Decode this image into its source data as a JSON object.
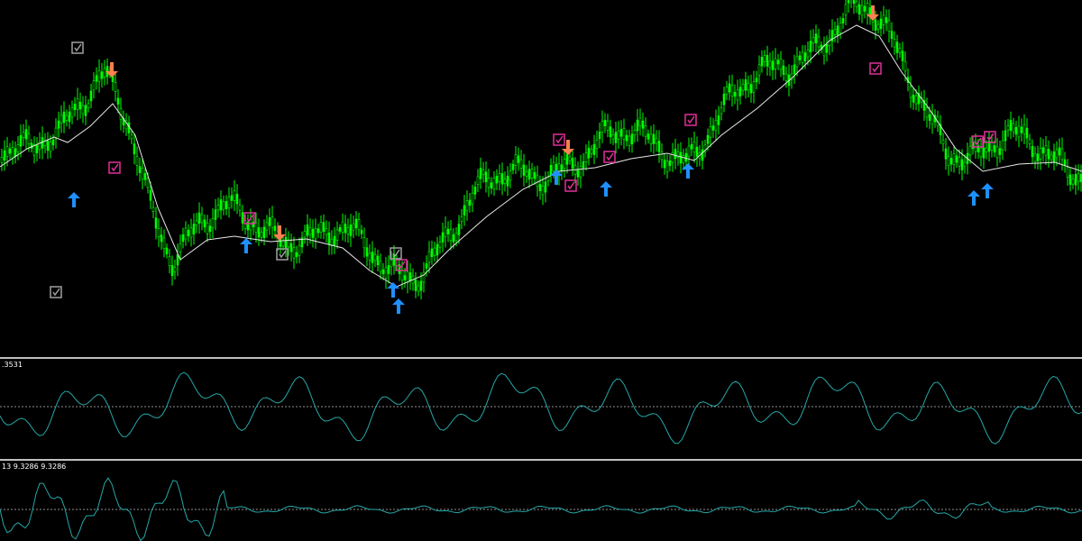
{
  "indicator_panels": [
    {
      "label": ".3531"
    },
    {
      "label": "13 9.3286 9.3286"
    }
  ]
}
